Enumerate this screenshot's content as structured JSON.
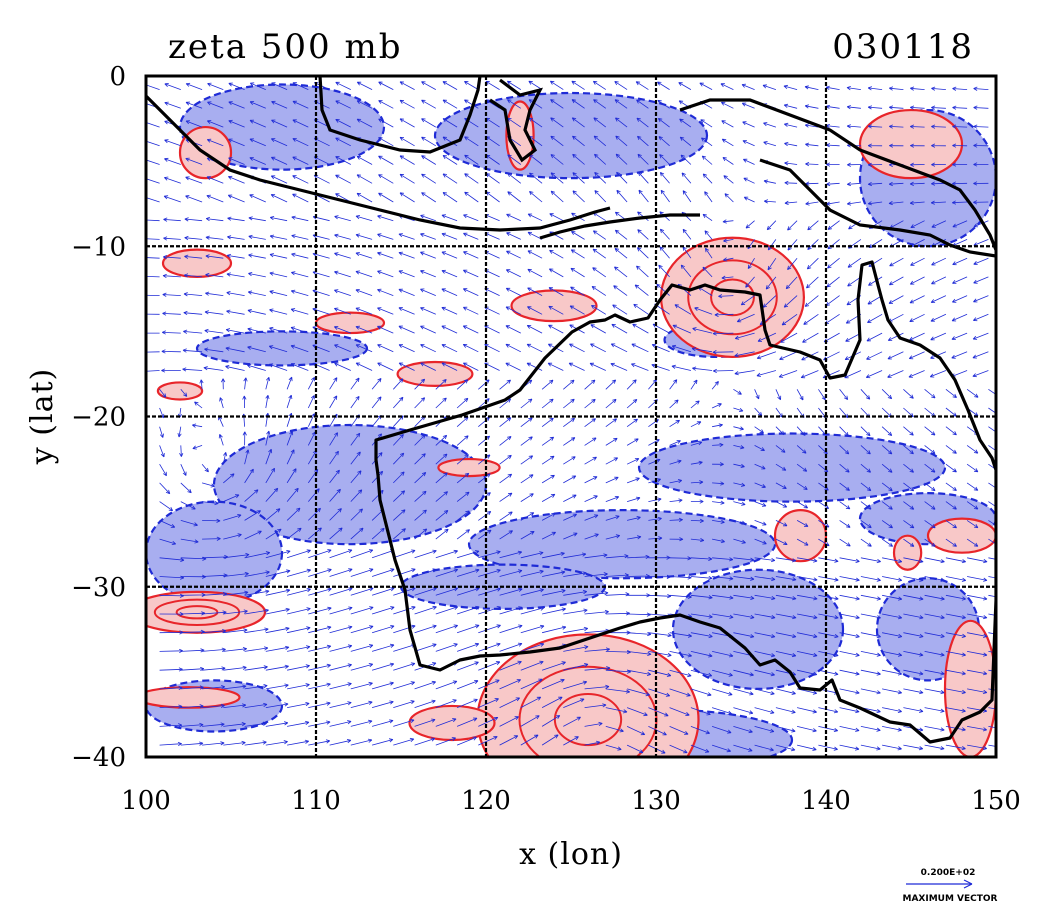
{
  "chart_data": {
    "type": "heatmap",
    "title": "zeta 500 mb",
    "date_label": "030118",
    "xlabel": "x (lon)",
    "ylabel": "y (lat)",
    "xlim": [
      100,
      150
    ],
    "ylim": [
      -40,
      0
    ],
    "x_ticks": [
      100,
      110,
      120,
      130,
      140,
      150
    ],
    "y_ticks": [
      0,
      -10,
      -20,
      -30,
      -40
    ],
    "x_tick_labels": [
      "100",
      "110",
      "120",
      "130",
      "140",
      "150"
    ],
    "y_tick_labels": [
      "0",
      "−10",
      "−20",
      "−30",
      "−40"
    ],
    "grid": true,
    "positive_vorticity_color": "#e8252a",
    "positive_fill_color": "#f8c8c8",
    "negative_vorticity_color": "#1f2bd6",
    "negative_fill_color": "#a8aef0",
    "coastline_color": "#000000",
    "vector_color": "#1f2bd6",
    "max_vector_value": "0.200E+02",
    "max_vector_label": "MAXIMUM VECTOR",
    "positive_regions": [
      {
        "lon": 134.5,
        "lat": -13.0,
        "rx": 4.2,
        "ry": 3.5
      },
      {
        "lon": 126.0,
        "lat": -37.8,
        "rx": 6.5,
        "ry": 5.0
      },
      {
        "lon": 124.0,
        "lat": -13.5,
        "rx": 2.5,
        "ry": 0.9
      },
      {
        "lon": 117.0,
        "lat": -17.5,
        "rx": 2.2,
        "ry": 0.7
      },
      {
        "lon": 112.0,
        "lat": -14.5,
        "rx": 2.0,
        "ry": 0.6
      },
      {
        "lon": 103.0,
        "lat": -31.5,
        "rx": 4.0,
        "ry": 1.2
      },
      {
        "lon": 102.5,
        "lat": -36.5,
        "rx": 3.0,
        "ry": 0.6
      },
      {
        "lon": 118.0,
        "lat": -38.0,
        "rx": 2.5,
        "ry": 1.0
      },
      {
        "lon": 138.5,
        "lat": -27.0,
        "rx": 1.5,
        "ry": 1.5
      },
      {
        "lon": 148.0,
        "lat": -27.0,
        "rx": 2.0,
        "ry": 1.0
      },
      {
        "lon": 144.8,
        "lat": -28.0,
        "rx": 0.8,
        "ry": 1.0
      },
      {
        "lon": 148.5,
        "lat": -36.0,
        "rx": 1.5,
        "ry": 4.0
      },
      {
        "lon": 102.0,
        "lat": -18.5,
        "rx": 1.3,
        "ry": 0.5
      },
      {
        "lon": 145.0,
        "lat": -4.0,
        "rx": 3.0,
        "ry": 2.0
      },
      {
        "lon": 103.5,
        "lat": -4.5,
        "rx": 1.5,
        "ry": 1.5
      },
      {
        "lon": 122.0,
        "lat": -3.5,
        "rx": 0.8,
        "ry": 2.0
      },
      {
        "lon": 119.0,
        "lat": -23.0,
        "rx": 1.8,
        "ry": 0.5
      },
      {
        "lon": 103.0,
        "lat": -11.0,
        "rx": 2.0,
        "ry": 0.8
      }
    ],
    "negative_regions": [
      {
        "lon": 125.0,
        "lat": -3.5,
        "rx": 8.0,
        "ry": 2.5
      },
      {
        "lon": 108.0,
        "lat": -3.0,
        "rx": 6.0,
        "ry": 2.5
      },
      {
        "lon": 112.0,
        "lat": -24.0,
        "rx": 8.0,
        "ry": 3.5
      },
      {
        "lon": 104.0,
        "lat": -28.0,
        "rx": 4.0,
        "ry": 3.0
      },
      {
        "lon": 128.0,
        "lat": -27.5,
        "rx": 9.0,
        "ry": 2.0
      },
      {
        "lon": 138.0,
        "lat": -23.0,
        "rx": 9.0,
        "ry": 2.0
      },
      {
        "lon": 136.0,
        "lat": -32.5,
        "rx": 5.0,
        "ry": 3.5
      },
      {
        "lon": 130.0,
        "lat": -39.0,
        "rx": 8.0,
        "ry": 1.8
      },
      {
        "lon": 146.0,
        "lat": -26.0,
        "rx": 4.0,
        "ry": 1.5
      },
      {
        "lon": 146.0,
        "lat": -32.5,
        "rx": 3.0,
        "ry": 3.0
      },
      {
        "lon": 108.0,
        "lat": -16.0,
        "rx": 5.0,
        "ry": 1.0
      },
      {
        "lon": 146.0,
        "lat": -6.0,
        "rx": 4.0,
        "ry": 4.0
      },
      {
        "lon": 104.0,
        "lat": -37.0,
        "rx": 4.0,
        "ry": 1.5
      },
      {
        "lon": 121.0,
        "lat": -30.0,
        "rx": 6.0,
        "ry": 1.3
      },
      {
        "lon": 133.5,
        "lat": -15.5,
        "rx": 3.0,
        "ry": 1.0
      }
    ]
  }
}
